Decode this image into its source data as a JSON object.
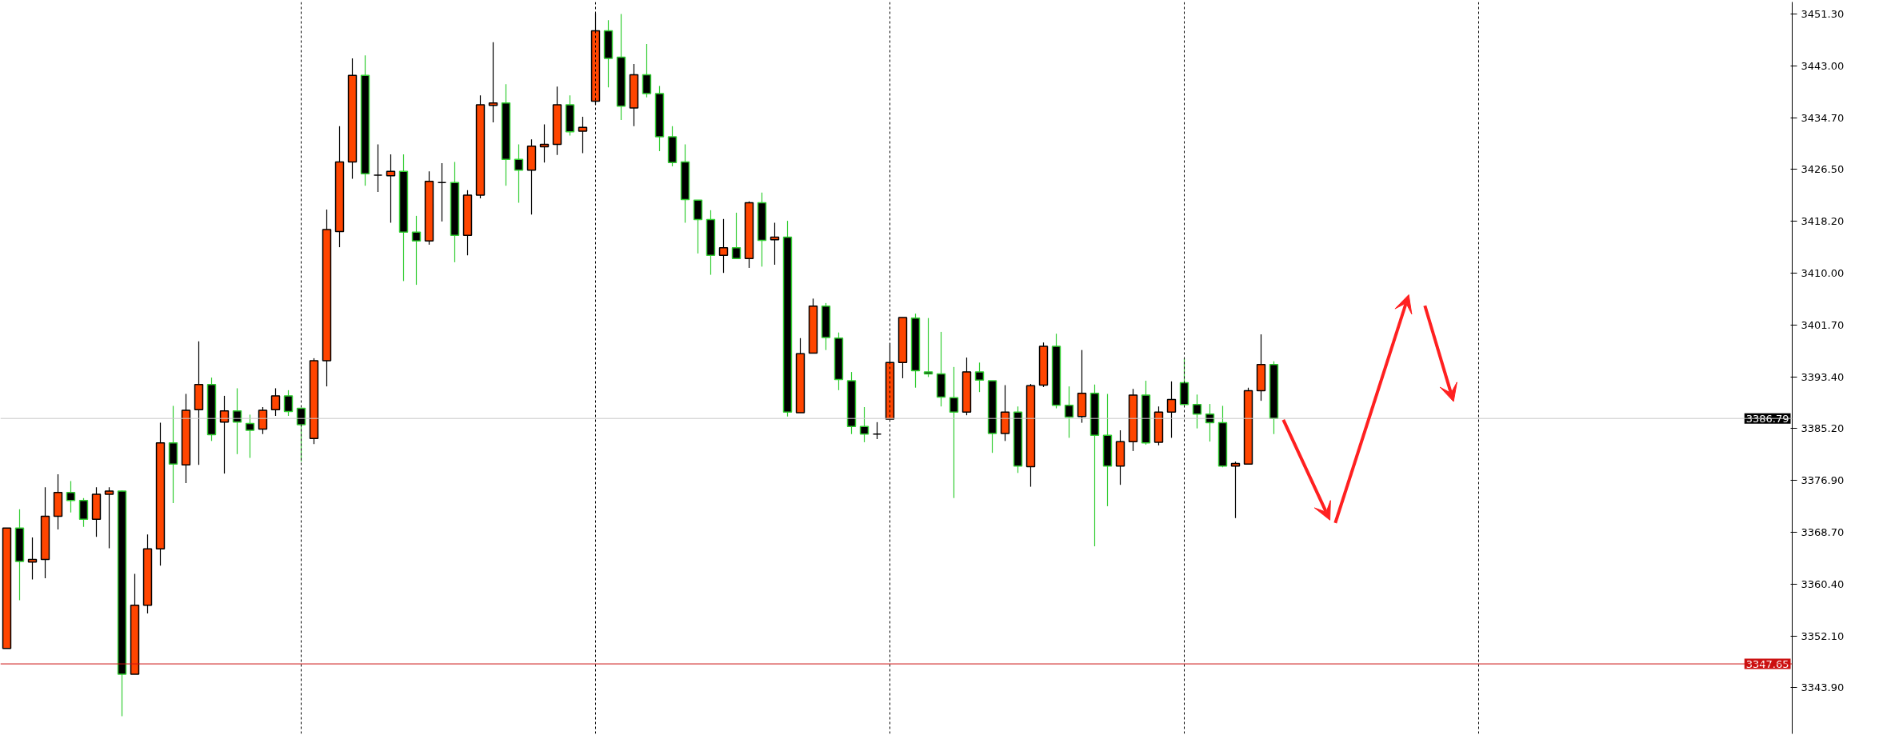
{
  "chart_data": {
    "type": "candlestick",
    "categories": [
      null,
      null,
      null,
      null,
      null,
      null,
      null,
      null,
      null,
      null,
      null,
      null,
      null,
      null,
      null,
      null,
      null,
      null,
      null,
      null,
      null,
      null,
      null,
      null,
      null,
      null,
      null,
      null,
      null,
      null,
      null,
      null,
      null,
      null,
      null,
      null,
      null,
      null,
      null,
      null,
      null,
      null,
      null,
      null,
      null,
      null,
      null,
      null,
      null,
      null,
      null,
      null,
      null,
      null,
      null,
      null,
      null,
      null,
      null,
      null,
      null,
      null,
      null,
      null,
      null,
      null,
      null,
      null,
      null,
      null,
      null,
      null,
      null,
      null,
      null,
      null,
      null,
      null,
      null,
      null,
      null,
      null,
      null,
      null,
      null,
      null,
      null,
      null,
      null,
      null,
      null,
      null,
      null,
      null,
      null,
      null,
      null,
      null,
      null,
      null,
      null,
      null,
      null,
      null,
      null,
      null,
      null,
      null,
      null,
      null,
      null,
      null,
      null,
      null,
      null,
      null,
      null,
      null,
      null,
      null,
      null,
      null,
      null,
      null,
      null,
      null,
      null,
      null,
      null,
      null,
      null,
      null,
      null,
      null,
      null,
      null,
      null,
      null,
      null,
      null
    ],
    "ohlc": [
      [
        3350.1,
        3369.3,
        3350.1,
        3369.3
      ],
      [
        3369.3,
        3372.3,
        3357.8,
        3364.0
      ],
      [
        3363.9,
        3367.8,
        3361.1,
        3364.3
      ],
      [
        3364.3,
        3375.8,
        3361.3,
        3371.2
      ],
      [
        3371.2,
        3377.9,
        3369.1,
        3375.0
      ],
      [
        3375.0,
        3376.8,
        3371.8,
        3373.7
      ],
      [
        3373.7,
        3374.1,
        3369.5,
        3370.7
      ],
      [
        3370.7,
        3375.8,
        3367.9,
        3374.7
      ],
      [
        3374.7,
        3375.8,
        3366.1,
        3375.2
      ],
      [
        3375.2,
        3375.3,
        3339.3,
        3346.0
      ],
      [
        3346.0,
        3362.0,
        3346.0,
        3357.0
      ],
      [
        3357.0,
        3368.3,
        3355.7,
        3366.0
      ],
      [
        3366.0,
        3386.1,
        3363.3,
        3382.9
      ],
      [
        3382.9,
        3388.8,
        3373.3,
        3379.5
      ],
      [
        3379.4,
        3390.7,
        3376.5,
        3388.1
      ],
      [
        3388.2,
        3399.1,
        3379.4,
        3392.2
      ],
      [
        3392.2,
        3393.3,
        3383.2,
        3384.2
      ],
      [
        3386.2,
        3390.4,
        3378.0,
        3388.0
      ],
      [
        3388.0,
        3391.6,
        3381.1,
        3386.2
      ],
      [
        3386.0,
        3387.4,
        3380.5,
        3384.9
      ],
      [
        3385.1,
        3388.6,
        3384.3,
        3388.1
      ],
      [
        3388.2,
        3391.6,
        3387.2,
        3390.4
      ],
      [
        3390.4,
        3391.3,
        3387.2,
        3387.9
      ],
      [
        3388.4,
        3388.4,
        3379.9,
        3385.8
      ],
      [
        3383.6,
        3396.4,
        3382.7,
        3396.0
      ],
      [
        3396.0,
        3420.1,
        3391.9,
        3416.9
      ],
      [
        3416.6,
        3433.4,
        3414.1,
        3427.7
      ],
      [
        3427.7,
        3444.2,
        3425.0,
        3441.5
      ],
      [
        3441.5,
        3444.7,
        3423.9,
        3425.8
      ],
      [
        3425.6,
        3430.5,
        3422.9,
        3425.6
      ],
      [
        3425.5,
        3428.9,
        3418.0,
        3426.2
      ],
      [
        3426.2,
        3428.9,
        3408.7,
        3416.5
      ],
      [
        3416.5,
        3419.1,
        3408.1,
        3415.1
      ],
      [
        3415.1,
        3426.2,
        3414.5,
        3424.6
      ],
      [
        3424.4,
        3427.5,
        3418.2,
        3424.4
      ],
      [
        3424.4,
        3427.7,
        3411.7,
        3416.0
      ],
      [
        3416.0,
        3423.2,
        3412.8,
        3422.4
      ],
      [
        3422.4,
        3438.3,
        3421.9,
        3436.8
      ],
      [
        3436.7,
        3446.8,
        3434.0,
        3437.1
      ],
      [
        3437.1,
        3440.1,
        3423.9,
        3428.1
      ],
      [
        3428.1,
        3430.5,
        3421.2,
        3426.4
      ],
      [
        3426.4,
        3431.3,
        3419.3,
        3430.2
      ],
      [
        3430.1,
        3433.7,
        3427.6,
        3430.5
      ],
      [
        3430.5,
        3439.7,
        3428.8,
        3436.8
      ],
      [
        3436.8,
        3438.3,
        3431.9,
        3432.5
      ],
      [
        3432.6,
        3434.9,
        3429.1,
        3433.2
      ],
      [
        3437.4,
        3451.4,
        3436.8,
        3448.6
      ],
      [
        3448.6,
        3450.3,
        3439.6,
        3444.2
      ],
      [
        3444.4,
        3451.3,
        3434.4,
        3436.6
      ],
      [
        3436.3,
        3443.3,
        3433.4,
        3441.6
      ],
      [
        3441.6,
        3446.5,
        3438.0,
        3438.6
      ],
      [
        3438.6,
        3439.8,
        3429.4,
        3431.7
      ],
      [
        3431.7,
        3433.4,
        3427.0,
        3427.6
      ],
      [
        3427.7,
        3430.5,
        3418.0,
        3421.7
      ],
      [
        3421.6,
        3421.6,
        3413.1,
        3418.5
      ],
      [
        3418.5,
        3420.0,
        3409.7,
        3412.8
      ],
      [
        3412.8,
        3418.6,
        3410.0,
        3414.0
      ],
      [
        3414.0,
        3419.6,
        3412.2,
        3412.3
      ],
      [
        3412.3,
        3421.4,
        3410.8,
        3421.2
      ],
      [
        3421.2,
        3422.8,
        3411.0,
        3415.2
      ],
      [
        3415.3,
        3418.0,
        3411.3,
        3415.7
      ],
      [
        3415.7,
        3418.3,
        3387.1,
        3387.8
      ],
      [
        3387.7,
        3399.6,
        3387.7,
        3397.1
      ],
      [
        3397.2,
        3405.9,
        3397.2,
        3404.7
      ],
      [
        3404.7,
        3405.2,
        3397.7,
        3399.7
      ],
      [
        3399.6,
        3400.5,
        3391.3,
        3393.0
      ],
      [
        3392.8,
        3394.2,
        3384.3,
        3385.5
      ],
      [
        3385.5,
        3388.6,
        3383.0,
        3384.3
      ],
      [
        3384.3,
        3386.2,
        3383.5,
        3384.3
      ],
      [
        3386.7,
        3398.8,
        3386.7,
        3395.7
      ],
      [
        3395.7,
        3402.9,
        3393.2,
        3402.9
      ],
      [
        3402.8,
        3403.5,
        3391.7,
        3394.4
      ],
      [
        3394.2,
        3402.8,
        3393.4,
        3393.9
      ],
      [
        3393.9,
        3400.6,
        3388.7,
        3390.2
      ],
      [
        3390.1,
        3395.0,
        3374.1,
        3387.8
      ],
      [
        3387.8,
        3396.5,
        3387.3,
        3394.2
      ],
      [
        3394.2,
        3395.7,
        3391.0,
        3392.9
      ],
      [
        3392.8,
        3392.8,
        3381.3,
        3384.4
      ],
      [
        3384.4,
        3392.1,
        3383.2,
        3387.8
      ],
      [
        3387.8,
        3388.7,
        3378.1,
        3379.2
      ],
      [
        3379.1,
        3392.3,
        3375.9,
        3392.0
      ],
      [
        3392.1,
        3398.9,
        3391.8,
        3398.3
      ],
      [
        3398.3,
        3400.3,
        3388.4,
        3388.9
      ],
      [
        3388.9,
        3391.9,
        3383.7,
        3387.0
      ],
      [
        3387.1,
        3397.7,
        3386.1,
        3390.8
      ],
      [
        3390.8,
        3392.2,
        3366.4,
        3384.1
      ],
      [
        3384.1,
        3390.7,
        3372.8,
        3379.2
      ],
      [
        3379.2,
        3384.9,
        3376.2,
        3383.1
      ],
      [
        3383.1,
        3391.5,
        3381.6,
        3390.5
      ],
      [
        3390.5,
        3392.8,
        3382.6,
        3382.9
      ],
      [
        3383.0,
        3388.7,
        3382.5,
        3387.8
      ],
      [
        3387.8,
        3392.7,
        3383.7,
        3389.8
      ],
      [
        3392.5,
        3396.4,
        3389.0,
        3389.0
      ],
      [
        3389.0,
        3390.6,
        3385.2,
        3387.5
      ],
      [
        3387.5,
        3389.1,
        3383.1,
        3386.1
      ],
      [
        3386.1,
        3388.8,
        3379.0,
        3379.2
      ],
      [
        3379.2,
        3379.9,
        3370.9,
        3379.6
      ],
      [
        3379.5,
        3391.7,
        3379.5,
        3391.2
      ],
      [
        3391.2,
        3400.2,
        3389.6,
        3395.4
      ],
      [
        3395.4,
        3395.9,
        3384.3,
        3386.79
      ],
      null,
      null,
      null,
      null,
      null,
      null,
      null,
      null,
      null,
      null,
      null,
      null,
      null,
      null,
      null,
      null,
      null,
      null,
      null,
      null,
      null,
      null,
      null,
      null,
      null,
      null,
      null,
      null,
      null,
      null,
      null,
      null,
      null,
      null,
      null,
      null,
      null,
      null,
      null,
      null
    ],
    "ylim": [
      3336.5,
      3453.2
    ],
    "yticks": [
      {
        "value": 3451.3,
        "label": "3451.30"
      },
      {
        "value": 3443.0,
        "label": "3443.00"
      },
      {
        "value": 3434.7,
        "label": "3434.70"
      },
      {
        "value": 3426.5,
        "label": "3426.50"
      },
      {
        "value": 3418.2,
        "label": "3418.20"
      },
      {
        "value": 3410.0,
        "label": "3410.00"
      },
      {
        "value": 3401.7,
        "label": "3401.70"
      },
      {
        "value": 3393.4,
        "label": "3393.40"
      },
      {
        "value": 3385.2,
        "label": "3385.20"
      },
      {
        "value": 3376.9,
        "label": "3376.90"
      },
      {
        "value": 3368.7,
        "label": "3368.70"
      },
      {
        "value": 3360.4,
        "label": "3360.40"
      },
      {
        "value": 3352.1,
        "label": "3352.10"
      },
      {
        "value": 3343.9,
        "label": "3343.90"
      }
    ],
    "tick_labels": "y",
    "ref_lines": [
      {
        "axis": "y",
        "value": 3347.65,
        "label": "3347.65",
        "color": "#cc1111"
      },
      {
        "axis": "y",
        "value": 3386.79,
        "label": "3386.79",
        "color": "#c8c8c8"
      }
    ]
  }
}
